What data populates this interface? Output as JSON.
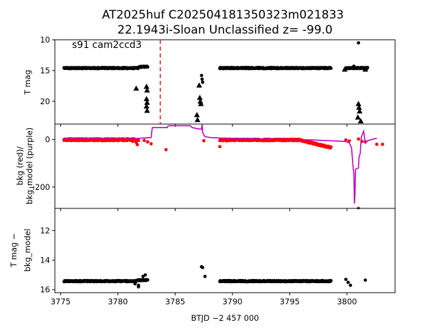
{
  "figure": {
    "title_line1": "AT2025huf  C202504181350323m021833",
    "title_line2": "22.1943i-Sloan Unclassified z= -99.0",
    "xlabel": "BTJD −2 457 000"
  },
  "chart_data": [
    {
      "type": "scatter",
      "panel": "top",
      "ylabel": "T mag",
      "ylim": [
        10,
        23.7
      ],
      "y_inverted": true,
      "xlim": [
        3774.5,
        3804.2
      ],
      "yticks": [
        10,
        15,
        20
      ],
      "annotation": "s91 cam2ccd3",
      "vline": {
        "x": 3783.7,
        "color": "#d62728",
        "style": "dashed"
      },
      "series": [
        {
          "marker": "dot",
          "color": "#000000",
          "segments": [
            {
              "x0": 3775.3,
              "x1": 3781.8,
              "y": 14.6
            },
            {
              "x0": 3781.9,
              "x1": 3782.6,
              "y": 14.4
            },
            {
              "x0": 3788.9,
              "x1": 3798.6,
              "y": 14.6
            },
            {
              "x0": 3799.9,
              "x1": 3801.8,
              "y": 14.6
            }
          ],
          "points": [
            {
              "x": 3787.3,
              "y": 15.8
            },
            {
              "x": 3787.35,
              "y": 16.4
            },
            {
              "x": 3787.4,
              "y": 16.9
            },
            {
              "x": 3800.6,
              "y": 14.3
            },
            {
              "x": 3801.0,
              "y": 10.5
            }
          ]
        },
        {
          "marker": "triangle",
          "color": "#000000",
          "points": [
            {
              "x": 3781.6,
              "y": 17.9
            },
            {
              "x": 3782.5,
              "y": 17.6
            },
            {
              "x": 3782.55,
              "y": 18.2
            },
            {
              "x": 3782.5,
              "y": 19.6
            },
            {
              "x": 3782.55,
              "y": 20.2
            },
            {
              "x": 3782.5,
              "y": 20.8
            },
            {
              "x": 3782.55,
              "y": 21.5
            },
            {
              "x": 3787.2,
              "y": 20.0
            },
            {
              "x": 3787.25,
              "y": 20.4
            },
            {
              "x": 3786.9,
              "y": 22.2
            },
            {
              "x": 3786.95,
              "y": 23.0
            },
            {
              "x": 3787.1,
              "y": 17.4
            },
            {
              "x": 3787.15,
              "y": 19.4
            },
            {
              "x": 3801.0,
              "y": 20.4
            },
            {
              "x": 3801.05,
              "y": 21.0
            },
            {
              "x": 3801.1,
              "y": 21.6
            },
            {
              "x": 3800.95,
              "y": 22.6
            },
            {
              "x": 3801.2,
              "y": 23.2
            },
            {
              "x": 3799.8,
              "y": 14.8
            },
            {
              "x": 3801.6,
              "y": 14.8
            }
          ]
        }
      ]
    },
    {
      "type": "line",
      "panel": "middle",
      "ylabel_line1": "bkg (red)/",
      "ylabel_line2": "bkg_model (purple)",
      "ylim": [
        -290,
        65
      ],
      "xlim": [
        3774.5,
        3804.2
      ],
      "yticks": [
        0,
        -200
      ],
      "series": [
        {
          "name": "bkg",
          "marker": "dot",
          "color": "#ff0000",
          "points": [
            [
              3775.3,
              -2
            ],
            [
              3776.0,
              -1
            ],
            [
              3777.0,
              0
            ],
            [
              3778.0,
              1
            ],
            [
              3779.0,
              0
            ],
            [
              3780.0,
              -2
            ],
            [
              3780.8,
              -4
            ],
            [
              3781.3,
              -8
            ],
            [
              3781.6,
              -12
            ],
            [
              3781.7,
              -22
            ],
            [
              3781.8,
              -4
            ],
            [
              3782.3,
              -4
            ],
            [
              3782.6,
              -10
            ],
            [
              3782.9,
              -18
            ],
            [
              3784.2,
              -43
            ],
            [
              3787.5,
              -5
            ],
            [
              3788.9,
              -30
            ],
            [
              3789.5,
              -6
            ],
            [
              3791.0,
              -2
            ],
            [
              3793.0,
              0
            ],
            [
              3795.0,
              -2
            ],
            [
              3796.0,
              -5
            ],
            [
              3796.5,
              -10
            ],
            [
              3797.0,
              -16
            ],
            [
              3797.5,
              -22
            ],
            [
              3798.0,
              -28
            ],
            [
              3798.5,
              -34
            ],
            [
              3799.9,
              -2
            ],
            [
              3800.2,
              -6
            ],
            [
              3801.0,
              2
            ],
            [
              3801.3,
              -8
            ],
            [
              3801.6,
              -10
            ],
            [
              3802.6,
              -20
            ],
            [
              3803.1,
              -20
            ],
            [
              3801.0,
              -290
            ]
          ]
        },
        {
          "name": "bkg_model",
          "color": "#bf00bf",
          "points": [
            [
              3775.3,
              2
            ],
            [
              3777.0,
              3
            ],
            [
              3779.0,
              2
            ],
            [
              3781.0,
              1
            ],
            [
              3781.8,
              5
            ],
            [
              3782.9,
              8
            ],
            [
              3783.0,
              50
            ],
            [
              3784.3,
              50
            ],
            [
              3784.4,
              58
            ],
            [
              3786.3,
              58
            ],
            [
              3786.5,
              50
            ],
            [
              3787.0,
              45
            ],
            [
              3787.3,
              43
            ],
            [
              3787.35,
              65
            ],
            [
              3787.4,
              30
            ],
            [
              3787.6,
              12
            ],
            [
              3788.1,
              8
            ],
            [
              3789.0,
              6
            ],
            [
              3791.0,
              4
            ],
            [
              3793.0,
              2
            ],
            [
              3795.0,
              0
            ],
            [
              3797.0,
              -2
            ],
            [
              3798.5,
              -5
            ],
            [
              3799.9,
              -8
            ],
            [
              3800.2,
              -15
            ],
            [
              3800.4,
              -35
            ],
            [
              3800.55,
              -125
            ],
            [
              3800.6,
              -140
            ],
            [
              3800.65,
              -270
            ],
            [
              3800.7,
              -235
            ],
            [
              3800.75,
              -125
            ],
            [
              3801.0,
              -120
            ],
            [
              3801.05,
              -75
            ],
            [
              3801.15,
              -60
            ],
            [
              3801.25,
              10
            ],
            [
              3801.45,
              35
            ],
            [
              3801.6,
              -15
            ],
            [
              3801.8,
              -5
            ],
            [
              3802.3,
              2
            ],
            [
              3802.6,
              5
            ]
          ]
        }
      ]
    },
    {
      "type": "scatter",
      "panel": "bottom",
      "ylabel_line1": "T mag −",
      "ylabel_line2": "bkg_model",
      "ylim": [
        10.5,
        16.2
      ],
      "y_inverted": true,
      "xlim": [
        3774.5,
        3804.2
      ],
      "yticks": [
        12,
        14,
        16
      ],
      "xticks": [
        3775,
        3780,
        3785,
        3790,
        3795,
        3800
      ],
      "series": [
        {
          "marker": "dot",
          "color": "#000000",
          "segments": [
            {
              "x0": 3775.3,
              "x1": 3781.6,
              "y": 15.42
            },
            {
              "x0": 3781.7,
              "x1": 3782.6,
              "y": 15.35
            },
            {
              "x0": 3788.9,
              "x1": 3798.6,
              "y": 15.42
            }
          ],
          "points": [
            [
              3787.3,
              14.45
            ],
            [
              3787.4,
              14.5
            ],
            [
              3787.6,
              15.1
            ],
            [
              3799.9,
              15.3
            ],
            [
              3800.1,
              15.5
            ],
            [
              3800.3,
              15.7
            ],
            [
              3801.0,
              10.45
            ],
            [
              3801.6,
              15.35
            ],
            [
              3781.8,
              15.7
            ],
            [
              3782.2,
              15.1
            ],
            [
              3782.4,
              15.0
            ],
            [
              3781.5,
              15.6
            ],
            [
              3781.8,
              15.8
            ]
          ]
        }
      ]
    }
  ]
}
